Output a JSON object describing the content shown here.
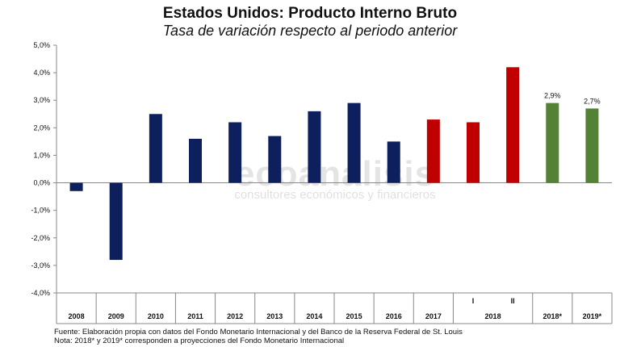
{
  "chart_data": {
    "type": "bar",
    "title": "Estados Unidos: Producto Interno Bruto",
    "subtitle": "Tasa de variación respecto al periodo anterior",
    "ylim": [
      -4,
      5
    ],
    "yticks": [
      "5,0%",
      "4,0%",
      "3,0%",
      "2,0%",
      "1,0%",
      "0,0%",
      "-1,0%",
      "-2,0%",
      "-3,0%",
      "-4,0%"
    ],
    "categories": [
      "2008",
      "2009",
      "2010",
      "2011",
      "2012",
      "2013",
      "2014",
      "2015",
      "2016",
      "2017",
      "I",
      "II",
      "2018*",
      "2019*"
    ],
    "values": [
      -0.3,
      -2.8,
      2.5,
      1.6,
      2.2,
      1.7,
      2.6,
      2.9,
      1.5,
      2.3,
      2.2,
      4.2,
      2.9,
      2.7
    ],
    "bar_colors": [
      "#0d1f5c",
      "#0d1f5c",
      "#0d1f5c",
      "#0d1f5c",
      "#0d1f5c",
      "#0d1f5c",
      "#0d1f5c",
      "#0d1f5c",
      "#0d1f5c",
      "#c00000",
      "#c00000",
      "#c00000",
      "#538135",
      "#538135"
    ],
    "data_labels": [
      "",
      "",
      "",
      "",
      "",
      "",
      "",
      "",
      "",
      "",
      "",
      "",
      "2,9%",
      "2,7%"
    ],
    "group_label_2018": "2018",
    "grid": false,
    "legend": "none"
  },
  "watermark": {
    "main": "ecoanálisis",
    "sub": "consultores económicos y financieros"
  },
  "notes": {
    "source": "Fuente: Elaboración propia con datos del Fondo Monetario Internacional y del Banco de la Reserva Federal de St. Louis",
    "note": "Nota: 2018* y 2019* corresponden a proyecciones del Fondo Monetario Internacional"
  }
}
